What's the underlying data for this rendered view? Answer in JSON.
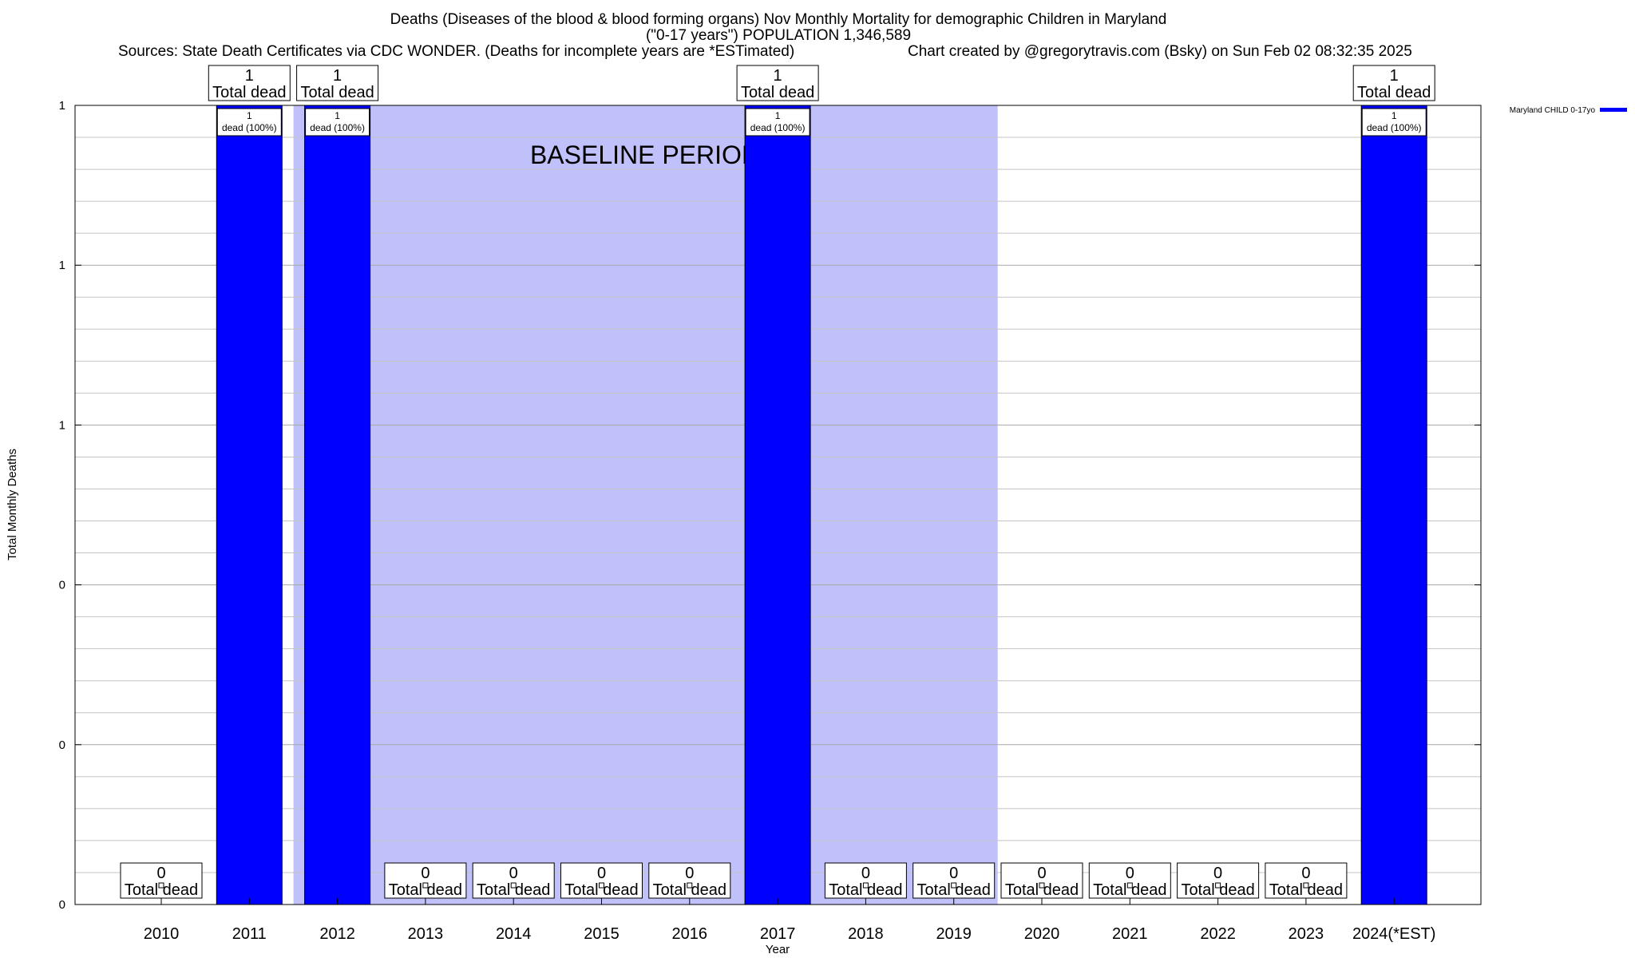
{
  "title": {
    "line1": "Deaths (Diseases of the blood & blood forming organs) Nov Monthly Mortality for demographic Children in Maryland",
    "line2": "(\"0-17 years\") POPULATION 1,346,589",
    "sources": "Sources: State Death Certificates via CDC WONDER. (Deaths for incomplete years are *ESTimated)",
    "credit": "Chart created by @gregorytravis.com (Bsky) on Sun Feb 02 08:32:35 2025"
  },
  "chart_data": {
    "type": "bar",
    "title": "Deaths (Diseases of the blood & blood forming organs) Nov Monthly Mortality for demographic Children in Maryland",
    "xlabel": "Year",
    "ylabel": "Total Monthly Deaths",
    "categories": [
      "2010",
      "2011",
      "2012",
      "2013",
      "2014",
      "2015",
      "2016",
      "2017",
      "2018",
      "2019",
      "2020",
      "2021",
      "2022",
      "2023",
      "2024(*EST)"
    ],
    "series": [
      {
        "name": "Maryland CHILD 0-17yo",
        "color": "#0000ff",
        "values": [
          0,
          1,
          1,
          0,
          0,
          0,
          0,
          1,
          0,
          0,
          0,
          0,
          0,
          0,
          1
        ]
      }
    ],
    "ylim": [
      0,
      1
    ],
    "yticks": [
      0,
      0.2,
      0.4,
      0.6,
      0.8,
      1
    ],
    "ytick_labels": [
      "0",
      "0",
      "0",
      "1",
      "1",
      "1"
    ],
    "baseline_period": {
      "label": "BASELINE PERIOD",
      "from": "2012",
      "to": "2019",
      "color": "#c0c0fa"
    },
    "top_label_unit": "Total dead",
    "inner_label_unit": "dead (100%)",
    "legend_position": "top-right",
    "grid": true
  }
}
